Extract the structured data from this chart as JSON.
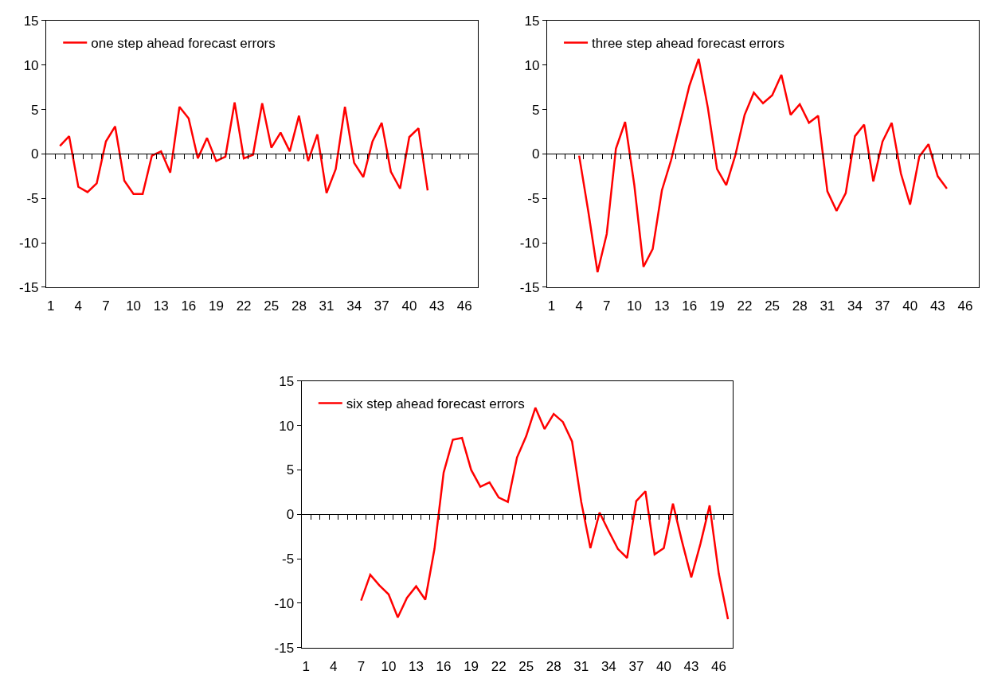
{
  "chart_data": [
    {
      "type": "line",
      "categories": [
        "1",
        null,
        null,
        "4",
        null,
        null,
        "7",
        null,
        null,
        "10",
        null,
        null,
        "13",
        null,
        null,
        "16",
        null,
        null,
        "19",
        null,
        null,
        "22",
        null,
        null,
        "25",
        null,
        null,
        "28",
        null,
        null,
        "31",
        null,
        null,
        "34",
        null,
        null,
        "37",
        null,
        null,
        "40",
        null,
        null,
        "43",
        null,
        null,
        "46",
        null
      ],
      "series": [
        {
          "name": "one step ahead forecast errors",
          "color": "#ff0000",
          "values": [
            null,
            0.9,
            2.0,
            -3.7,
            -4.3,
            -3.3,
            1.4,
            3.1,
            -3.0,
            -4.5,
            -4.5,
            -0.2,
            0.3,
            -2.1,
            5.3,
            4.0,
            -0.5,
            1.8,
            -0.8,
            -0.3,
            5.8,
            -0.5,
            -0.1,
            5.7,
            0.7,
            2.4,
            0.3,
            4.3,
            -0.8,
            2.2,
            -4.4,
            -1.7,
            5.3,
            -1.0,
            -2.6,
            1.4,
            3.5,
            -2.0,
            -3.9,
            1.9,
            2.9,
            -4.1,
            null,
            null,
            null,
            null,
            null
          ]
        }
      ],
      "ylim": [
        -15,
        15
      ],
      "yticks": [
        -15,
        -10,
        -5,
        0,
        5,
        10,
        15
      ],
      "legend": "top left",
      "marker": "none",
      "line_style": "solid"
    },
    {
      "type": "line",
      "categories": [
        "1",
        null,
        null,
        "4",
        null,
        null,
        "7",
        null,
        null,
        "10",
        null,
        null,
        "13",
        null,
        null,
        "16",
        null,
        null,
        "19",
        null,
        null,
        "22",
        null,
        null,
        "25",
        null,
        null,
        "28",
        null,
        null,
        "31",
        null,
        null,
        "34",
        null,
        null,
        "37",
        null,
        null,
        "40",
        null,
        null,
        "43",
        null,
        null,
        "46",
        null
      ],
      "series": [
        {
          "name": "three step ahead forecast errors",
          "color": "#ff0000",
          "values": [
            null,
            null,
            null,
            -0.2,
            -6.5,
            -13.3,
            -9.0,
            0.6,
            3.6,
            -3.5,
            -12.7,
            -10.7,
            -4.1,
            -0.7,
            3.5,
            7.7,
            10.7,
            5.2,
            -1.7,
            -3.5,
            -0.1,
            4.4,
            6.9,
            5.7,
            6.6,
            8.9,
            4.4,
            5.6,
            3.5,
            4.3,
            -4.2,
            -6.4,
            -4.4,
            2.0,
            3.3,
            -3.1,
            1.4,
            3.5,
            -2.2,
            -5.7,
            -0.3,
            1.1,
            -2.5,
            -3.9,
            null,
            null,
            null
          ]
        }
      ],
      "ylim": [
        -15,
        15
      ],
      "yticks": [
        -15,
        -10,
        -5,
        0,
        5,
        10,
        15
      ],
      "legend": "top left",
      "marker": "none",
      "line_style": "solid"
    },
    {
      "type": "line",
      "categories": [
        "1",
        null,
        null,
        "4",
        null,
        null,
        "7",
        null,
        null,
        "10",
        null,
        null,
        "13",
        null,
        null,
        "16",
        null,
        null,
        "19",
        null,
        null,
        "22",
        null,
        null,
        "25",
        null,
        null,
        "28",
        null,
        null,
        "31",
        null,
        null,
        "34",
        null,
        null,
        "37",
        null,
        null,
        "40",
        null,
        null,
        "43",
        null,
        null,
        "46",
        null
      ],
      "series": [
        {
          "name": "six step ahead forecast errors",
          "color": "#ff0000",
          "values": [
            null,
            null,
            null,
            null,
            null,
            null,
            -9.7,
            -6.8,
            -8.0,
            -9.0,
            -11.6,
            -9.4,
            -8.1,
            -9.6,
            -3.9,
            4.7,
            8.4,
            8.6,
            5.0,
            3.1,
            3.6,
            1.9,
            1.4,
            6.4,
            8.8,
            12.0,
            9.6,
            11.3,
            10.4,
            8.2,
            1.4,
            -3.8,
            0.2,
            -1.9,
            -3.9,
            -4.9,
            1.5,
            2.6,
            -4.5,
            -3.8,
            1.2,
            -3.1,
            -7.1,
            -3.3,
            1.0,
            -6.7,
            -11.8
          ]
        }
      ],
      "ylim": [
        -15,
        15
      ],
      "yticks": [
        -15,
        -10,
        -5,
        0,
        5,
        10,
        15
      ],
      "legend": "top left",
      "marker": "none",
      "line_style": "solid"
    }
  ]
}
